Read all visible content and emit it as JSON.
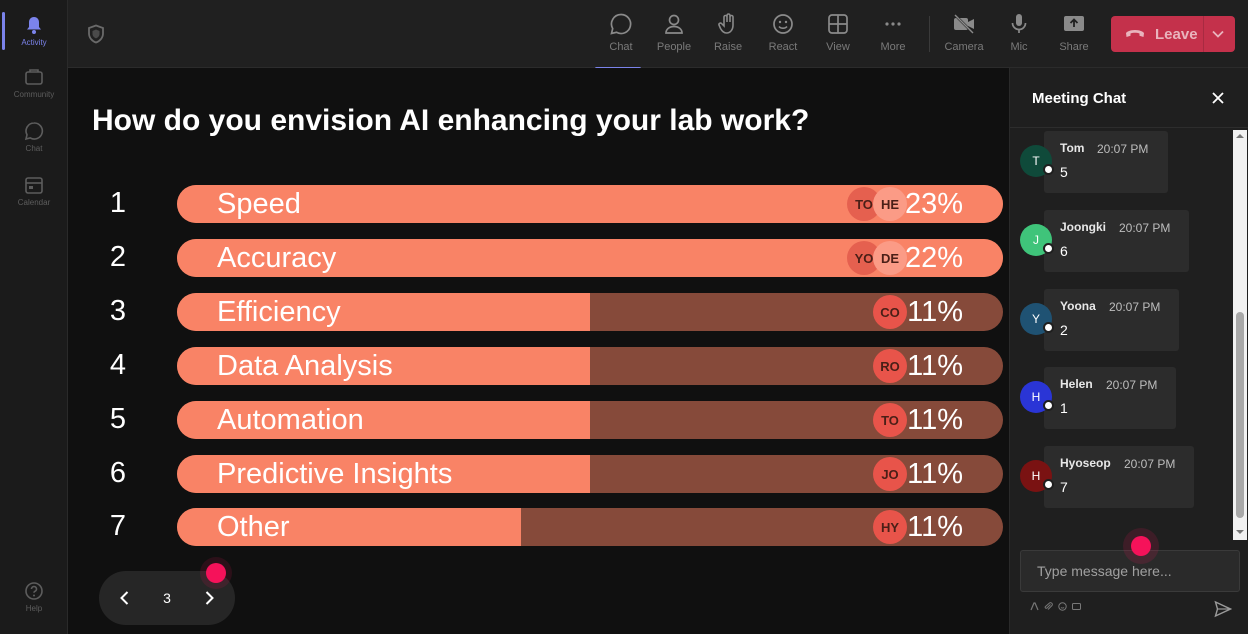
{
  "rail": {
    "items": [
      {
        "label": "Activity",
        "icon": "bell-icon",
        "active": true
      },
      {
        "label": "Community",
        "icon": "community-icon",
        "active": false
      },
      {
        "label": "Chat",
        "icon": "chat-icon",
        "active": false
      },
      {
        "label": "Calendar",
        "icon": "calendar-icon",
        "active": false
      }
    ],
    "help": {
      "label": "Help",
      "icon": "help-icon"
    }
  },
  "toolbar": {
    "buttons": [
      {
        "label": "Chat",
        "icon": "chat-icon",
        "active": true
      },
      {
        "label": "People",
        "icon": "people-icon",
        "active": false
      },
      {
        "label": "Raise",
        "icon": "hand-icon",
        "active": false
      },
      {
        "label": "React",
        "icon": "smiley-icon",
        "active": false
      },
      {
        "label": "View",
        "icon": "grid-icon",
        "active": false
      },
      {
        "label": "More",
        "icon": "ellipsis-icon",
        "active": false
      },
      {
        "label": "Camera",
        "icon": "camera-off-icon",
        "active": false
      },
      {
        "label": "Mic",
        "icon": "mic-icon",
        "active": false
      },
      {
        "label": "Share",
        "icon": "share-icon",
        "active": false
      }
    ],
    "leave_label": "Leave"
  },
  "poll": {
    "question": "How do you envision AI enhancing your lab work?",
    "options": [
      {
        "num": "1",
        "label": "Speed",
        "percent_text": "23%",
        "fill": 1.0,
        "chips": [
          "TO",
          "HE"
        ]
      },
      {
        "num": "2",
        "label": "Accuracy",
        "percent_text": "22%",
        "fill": 1.0,
        "chips": [
          "YO",
          "DE"
        ]
      },
      {
        "num": "3",
        "label": "Efficiency",
        "percent_text": "11%",
        "fill": 0.5,
        "chips": [
          "CO"
        ]
      },
      {
        "num": "4",
        "label": "Data Analysis",
        "percent_text": "11%",
        "fill": 0.5,
        "chips": [
          "RO"
        ]
      },
      {
        "num": "5",
        "label": "Automation",
        "percent_text": "11%",
        "fill": 0.5,
        "chips": [
          "TO"
        ]
      },
      {
        "num": "6",
        "label": "Predictive Insights",
        "percent_text": "11%",
        "fill": 0.5,
        "chips": [
          "JO"
        ]
      },
      {
        "num": "7",
        "label": "Other",
        "percent_text": "11%",
        "fill": 0.416,
        "chips": [
          "HY"
        ]
      }
    ],
    "page": "3"
  },
  "chat": {
    "title": "Meeting Chat",
    "messages": [
      {
        "initial": "T",
        "name": "Tom",
        "time": "20:07 PM",
        "text": "5",
        "color": "#0f4a3a"
      },
      {
        "initial": "J",
        "name": "Joongki",
        "time": "20:07 PM",
        "text": "6",
        "color": "#3fc47a"
      },
      {
        "initial": "Y",
        "name": "Yoona",
        "time": "20:07 PM",
        "text": "2",
        "color": "#1f5273"
      },
      {
        "initial": "H",
        "name": "Helen",
        "time": "20:07 PM",
        "text": "1",
        "color": "#2a35d6"
      },
      {
        "initial": "H",
        "name": "Hyoseop",
        "time": "20:07 PM",
        "text": "7",
        "color": "#7a1212"
      }
    ],
    "input_placeholder": "Type message here..."
  }
}
